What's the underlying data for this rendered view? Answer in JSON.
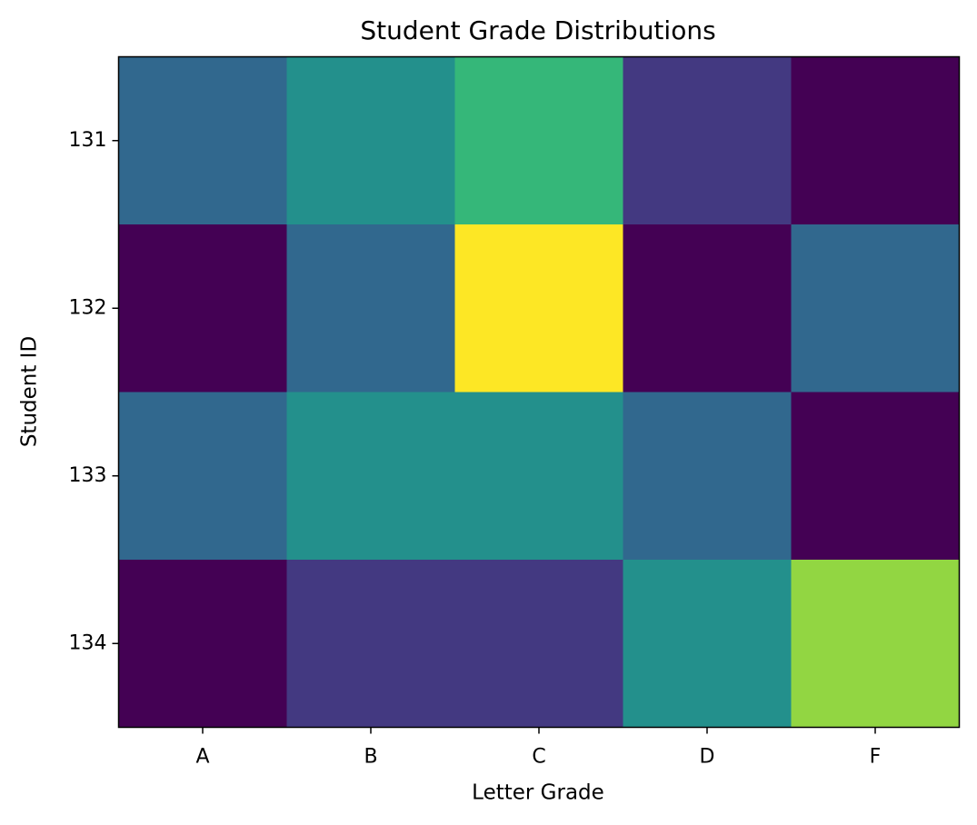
{
  "chart_data": {
    "type": "heatmap",
    "title": "Student Grade Distributions",
    "x_label": "Letter Grade",
    "y_label": "Student ID",
    "categories": [
      "A",
      "B",
      "C",
      "D",
      "F"
    ],
    "y_categories": [
      "131",
      "132",
      "133",
      "134"
    ],
    "values": [
      [
        2,
        3,
        4,
        1,
        0
      ],
      [
        0,
        2,
        6,
        0,
        2
      ],
      [
        2,
        3,
        3,
        2,
        0
      ],
      [
        0,
        1,
        1,
        3,
        5
      ]
    ],
    "colormap": "viridis"
  }
}
